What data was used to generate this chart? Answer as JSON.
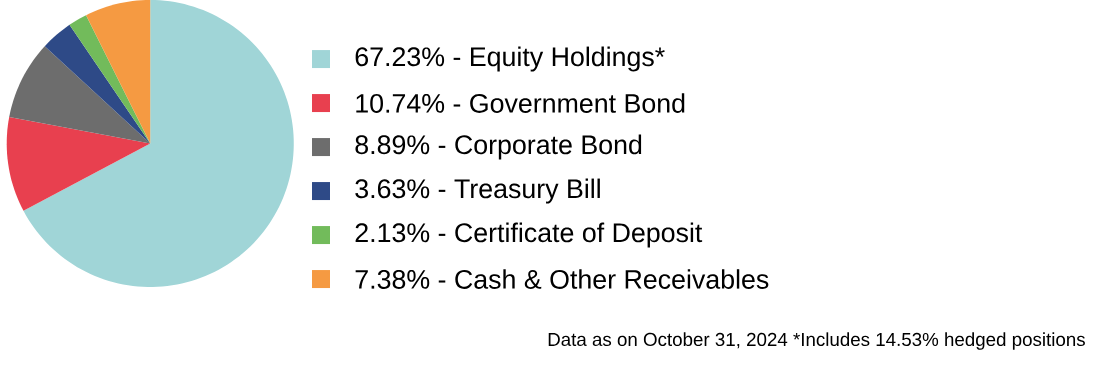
{
  "chart_data": {
    "type": "pie",
    "categories": [
      "67.23%  - Equity Holdings*",
      "10.74% - Government Bond",
      "8.89% - Corporate Bond",
      "3.63% - Treasury Bill",
      "2.13% - Certificate of Deposit",
      "7.38% - Cash & Other Receivables"
    ],
    "values": [
      67.23,
      10.74,
      8.89,
      3.63,
      2.13,
      7.38
    ],
    "colors": [
      "#a0d5d7",
      "#e8404f",
      "#6d6d6d",
      "#2e4a87",
      "#72bb5b",
      "#f59a42"
    ],
    "legend": "right",
    "annotations": [
      "Data as on October 31, 2024 *Includes 14.53% hedged positions"
    ]
  }
}
